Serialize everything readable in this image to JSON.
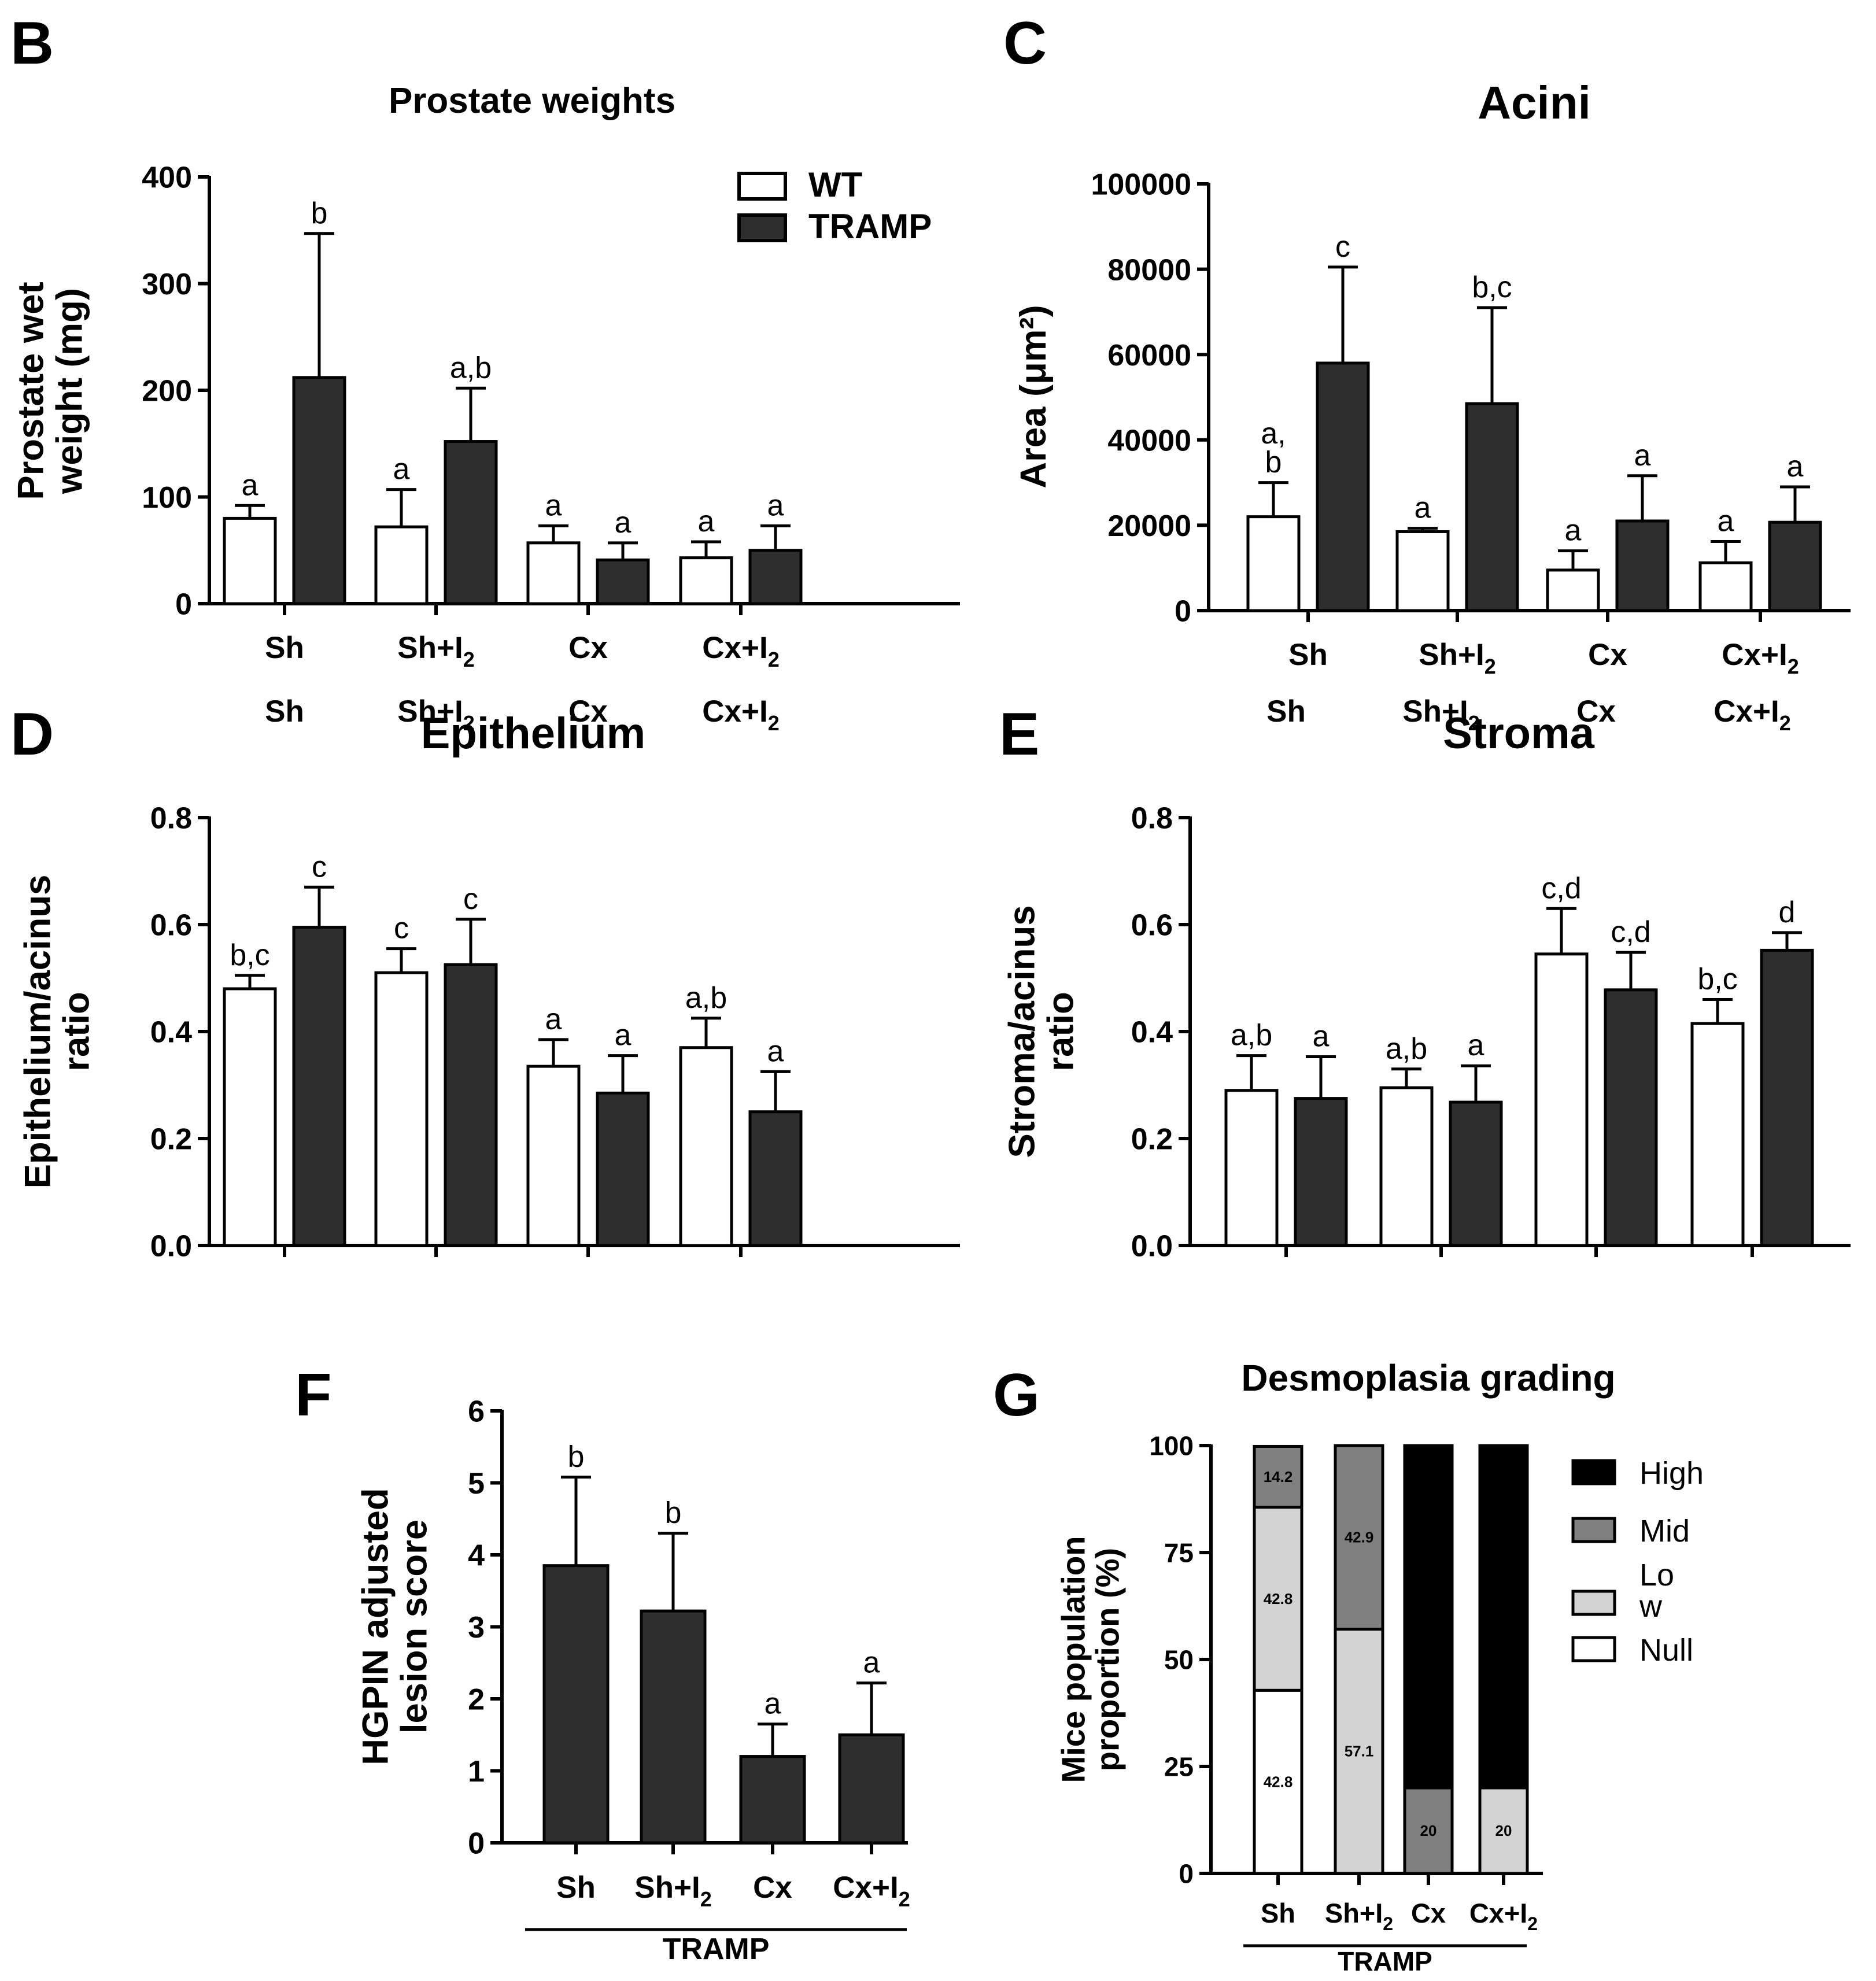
{
  "colors": {
    "wt": "#ffffff",
    "tramp": "#2e2e2e",
    "axis": "#000000",
    "high": "#000000",
    "mid": "#808080",
    "low": "#d3d3d3",
    "null": "#ffffff"
  },
  "chart_data": [
    {
      "id": "B",
      "type": "bar",
      "panel_letter": "B",
      "title": "Prostate weights",
      "ylabel_lines": [
        "Prostate wet",
        "weight (mg)"
      ],
      "ylim": [
        0,
        400
      ],
      "yticks": [
        0,
        100,
        200,
        300,
        400
      ],
      "categories": [
        {
          "base": "Sh"
        },
        {
          "base": "Sh+I",
          "sub": "2"
        },
        {
          "base": "Cx"
        },
        {
          "base": "Cx+I",
          "sub": "2"
        }
      ],
      "series": [
        {
          "name": "WT",
          "color_key": "wt",
          "values": [
            80,
            72,
            57,
            43
          ],
          "errors": [
            12,
            35,
            16,
            15
          ],
          "letters": [
            "a",
            "a",
            "a",
            "a"
          ]
        },
        {
          "name": "TRAMP",
          "color_key": "tramp",
          "values": [
            212,
            152,
            41,
            50
          ],
          "errors": [
            135,
            50,
            16,
            23
          ],
          "letters": [
            "b",
            "a,b",
            "a",
            "a"
          ]
        }
      ],
      "legend": [
        {
          "label": "WT",
          "color_key": "wt"
        },
        {
          "label": "TRAMP",
          "color_key": "tramp"
        }
      ],
      "legend_position": "top-right"
    },
    {
      "id": "C",
      "type": "bar",
      "panel_letter": "C",
      "title": "Acini",
      "ylabel_lines": [
        "Area (μm²)"
      ],
      "ylim": [
        0,
        100000
      ],
      "yticks": [
        0,
        20000,
        40000,
        60000,
        80000,
        100000
      ],
      "categories": [
        {
          "base": "Sh"
        },
        {
          "base": "Sh+I",
          "sub": "2"
        },
        {
          "base": "Cx"
        },
        {
          "base": "Cx+I",
          "sub": "2"
        }
      ],
      "series": [
        {
          "name": "WT",
          "color_key": "wt",
          "values": [
            22000,
            18500,
            9500,
            11200
          ],
          "errors": [
            8000,
            800,
            4500,
            5000
          ],
          "letters": [
            "a,|b",
            "a",
            "a",
            "a"
          ]
        },
        {
          "name": "TRAMP",
          "color_key": "tramp",
          "values": [
            58000,
            48500,
            21000,
            20700
          ],
          "errors": [
            22500,
            22500,
            10600,
            8300
          ],
          "letters": [
            "c",
            "b,c",
            "a",
            "a"
          ]
        }
      ]
    },
    {
      "id": "D",
      "type": "bar",
      "panel_letter": "D",
      "title": "Epithelium",
      "ylabel_lines": [
        "Epithelium/acinus",
        "ratio"
      ],
      "ylim": [
        0,
        0.8
      ],
      "yticks": [
        0.0,
        0.2,
        0.4,
        0.6,
        0.8
      ],
      "ytick_labels": [
        "0.0",
        "0.2",
        "0.4",
        "0.6",
        "0.8"
      ],
      "categories": [
        {
          "base": "Sh"
        },
        {
          "base": "Sh+I",
          "sub": "2"
        },
        {
          "base": "Cx"
        },
        {
          "base": "Cx+I",
          "sub": "2"
        }
      ],
      "series": [
        {
          "name": "WT",
          "color_key": "wt",
          "values": [
            0.48,
            0.51,
            0.335,
            0.37
          ],
          "errors": [
            0.025,
            0.045,
            0.05,
            0.055
          ],
          "letters": [
            "b,c",
            "c",
            "a",
            "a,b"
          ]
        },
        {
          "name": "TRAMP",
          "color_key": "tramp",
          "values": [
            0.595,
            0.525,
            0.285,
            0.25
          ],
          "errors": [
            0.075,
            0.085,
            0.07,
            0.075
          ],
          "letters": [
            "c",
            "c",
            "a",
            "a"
          ]
        }
      ]
    },
    {
      "id": "E",
      "type": "bar",
      "panel_letter": "E",
      "title": "Stroma",
      "ylabel_lines": [
        "Stroma/acinus",
        "ratio"
      ],
      "ylim": [
        0,
        0.8
      ],
      "yticks": [
        0.0,
        0.2,
        0.4,
        0.6,
        0.8
      ],
      "ytick_labels": [
        "0.0",
        "0.2",
        "0.4",
        "0.6",
        "0.8"
      ],
      "categories": [
        {
          "base": "Sh"
        },
        {
          "base": "Sh+I",
          "sub": "2"
        },
        {
          "base": "Cx"
        },
        {
          "base": "Cx+I",
          "sub": "2"
        }
      ],
      "series": [
        {
          "name": "WT",
          "color_key": "wt",
          "values": [
            0.29,
            0.295,
            0.545,
            0.415
          ],
          "errors": [
            0.065,
            0.035,
            0.085,
            0.045
          ],
          "letters": [
            "a,b",
            "a,b",
            "c,d",
            "b,c"
          ]
        },
        {
          "name": "TRAMP",
          "color_key": "tramp",
          "values": [
            0.275,
            0.268,
            0.478,
            0.552
          ],
          "errors": [
            0.078,
            0.068,
            0.07,
            0.033
          ],
          "letters": [
            "a",
            "a",
            "c,d",
            "d"
          ]
        }
      ]
    },
    {
      "id": "F",
      "type": "bar",
      "panel_letter": "F",
      "title": "",
      "ylabel_lines": [
        "HGPIN adjusted",
        "lesion score"
      ],
      "ylim": [
        0,
        6
      ],
      "yticks": [
        0,
        1,
        2,
        3,
        4,
        5,
        6
      ],
      "categories": [
        {
          "base": "Sh"
        },
        {
          "base": "Sh+I",
          "sub": "2"
        },
        {
          "base": "Cx"
        },
        {
          "base": "Cx+I",
          "sub": "2"
        }
      ],
      "series": [
        {
          "name": "TRAMP",
          "color_key": "tramp",
          "values": [
            3.85,
            3.22,
            1.2,
            1.5
          ],
          "errors": [
            1.23,
            1.08,
            0.45,
            0.72
          ],
          "letters": [
            "b",
            "b",
            "a",
            "a"
          ]
        }
      ],
      "group_label": "TRAMP"
    },
    {
      "id": "G",
      "type": "bar",
      "stacked": true,
      "panel_letter": "G",
      "title": "Desmoplasia grading",
      "ylabel_lines": [
        "Mice population",
        "proportion (%)"
      ],
      "ylim": [
        0,
        100
      ],
      "yticks": [
        0,
        25,
        50,
        75,
        100
      ],
      "categories": [
        {
          "base": "Sh"
        },
        {
          "base": "Sh+I",
          "sub": "2"
        },
        {
          "base": "Cx"
        },
        {
          "base": "Cx+I",
          "sub": "2"
        }
      ],
      "series": [
        {
          "name": "Null",
          "color_key": "null",
          "values": [
            42.8,
            0,
            0,
            0
          ],
          "labels": [
            "42.8",
            "",
            "",
            ""
          ]
        },
        {
          "name": "Low",
          "color_key": "low",
          "values": [
            42.8,
            57.1,
            0,
            20
          ],
          "labels": [
            "42.8",
            "57.1",
            "",
            "20"
          ]
        },
        {
          "name": "Mid",
          "color_key": "mid",
          "values": [
            14.2,
            42.9,
            20,
            0
          ],
          "labels": [
            "14.2",
            "42.9",
            "20",
            ""
          ]
        },
        {
          "name": "High",
          "color_key": "high",
          "values": [
            0,
            0,
            80,
            80
          ],
          "labels": [
            "",
            "",
            "",
            ""
          ]
        }
      ],
      "legend": [
        {
          "label": "High",
          "color_key": "high"
        },
        {
          "label": "Mid",
          "color_key": "mid"
        },
        {
          "label": "Lo|w",
          "color_key": "low"
        },
        {
          "label": "Null",
          "color_key": "null"
        }
      ],
      "legend_position": "right",
      "group_label": "TRAMP"
    }
  ]
}
